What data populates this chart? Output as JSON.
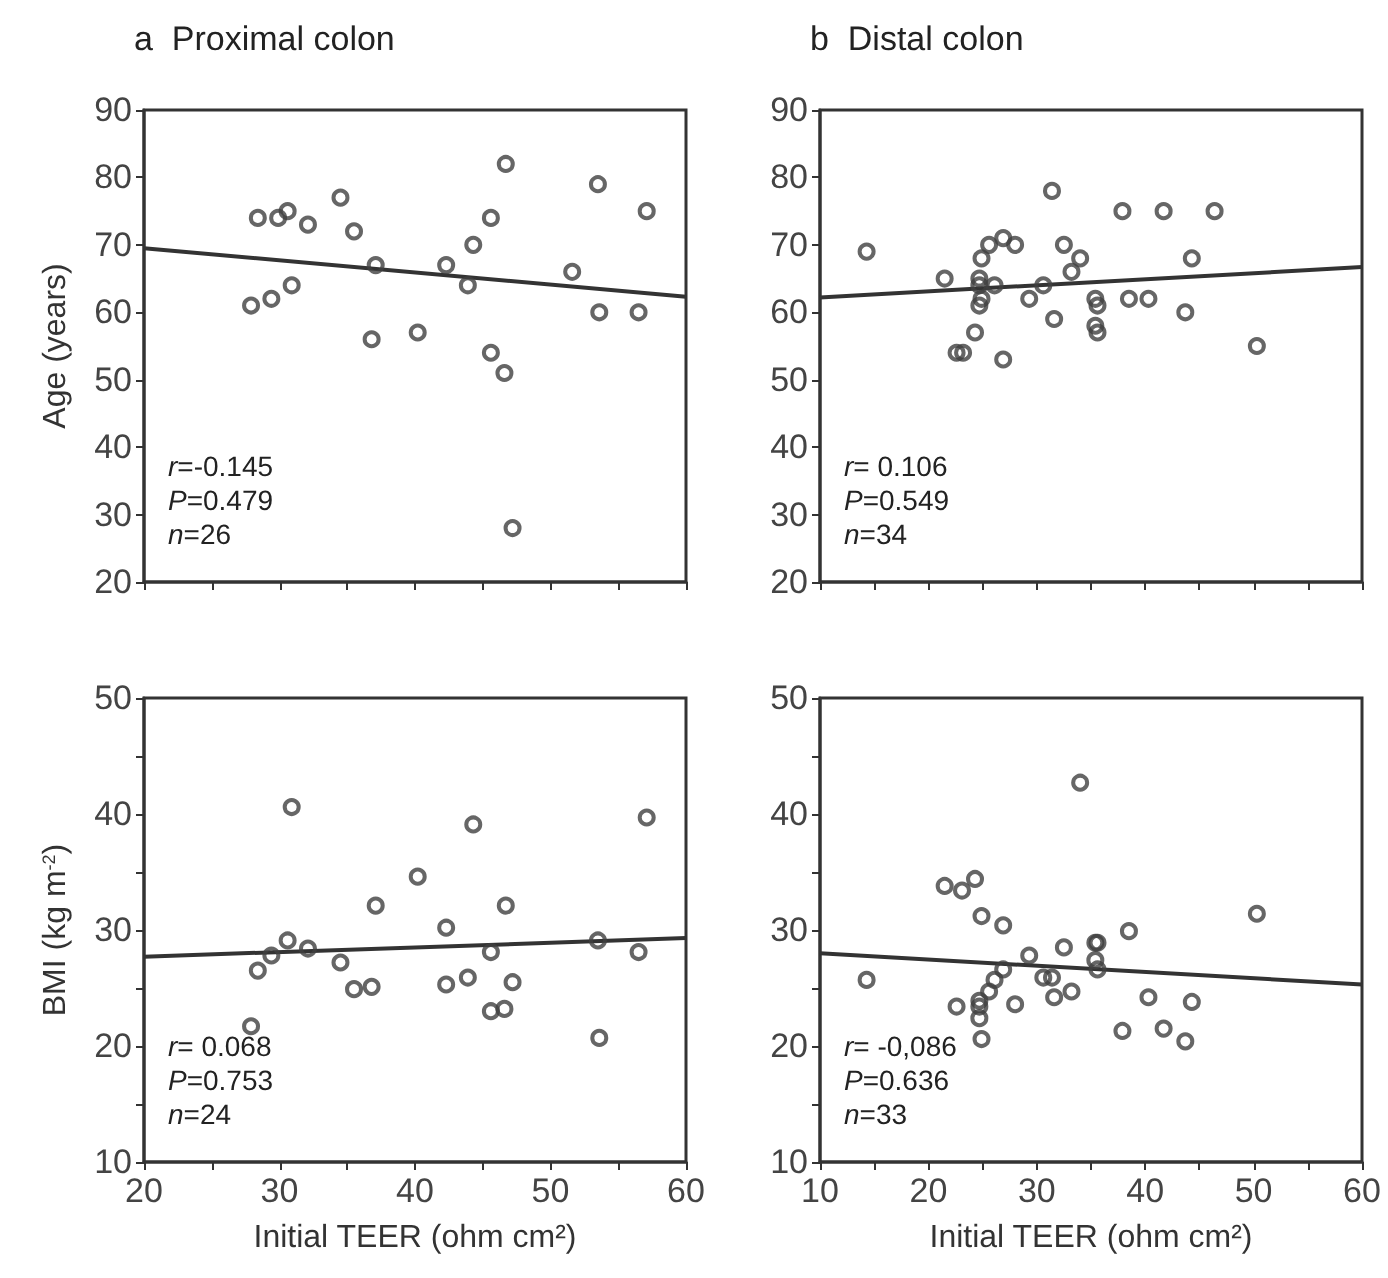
{
  "chart_data": [
    {
      "type": "scatter",
      "title": "a  Proximal colon",
      "ylabel": "Age (years)",
      "tick_labels": "y",
      "xlim": [
        20,
        60
      ],
      "xticks": [
        20,
        {
          "value": 25,
          "label": null
        },
        30,
        {
          "value": 35,
          "label": null
        },
        40,
        {
          "value": 45,
          "label": null
        },
        50,
        {
          "value": 55,
          "label": null
        },
        60
      ],
      "ylim": [
        20,
        90
      ],
      "yticks": [
        20,
        30,
        40,
        50,
        60,
        70,
        80,
        90
      ],
      "annotations": [
        "r=-0.145",
        "P=0.479",
        "n=26"
      ],
      "series": [
        {
          "marker": "circle",
          "color": "#404040",
          "x": [
            27.9,
            28.4,
            29.4,
            29.9,
            30.6,
            30.9,
            32.1,
            34.5,
            35.5,
            36.8,
            37.1,
            40.2,
            42.3,
            43.9,
            44.3,
            45.6,
            45.6,
            46.6,
            46.7,
            47.2,
            51.6,
            53.5,
            53.6,
            56.5,
            57.1
          ],
          "values": [
            61,
            74,
            62,
            74,
            75,
            64,
            73,
            77,
            72,
            56,
            67,
            57,
            67,
            64,
            70,
            54,
            74,
            51,
            82,
            28,
            66,
            79,
            60,
            60,
            75
          ]
        },
        {
          "type": "line",
          "marker": "none",
          "color": "#333333",
          "x": [
            20,
            60
          ],
          "values": [
            69.5,
            62.3
          ]
        }
      ]
    },
    {
      "type": "scatter",
      "title": "b  Distal colon",
      "tick_labels": "y",
      "xlim": [
        10,
        60
      ],
      "xticks": [
        10,
        {
          "value": 15,
          "label": null
        },
        20,
        {
          "value": 25,
          "label": null
        },
        30,
        {
          "value": 35,
          "label": null
        },
        40,
        {
          "value": 45,
          "label": null
        },
        50,
        {
          "value": 55,
          "label": null
        },
        60
      ],
      "ylim": [
        20,
        90
      ],
      "yticks": [
        20,
        30,
        40,
        50,
        60,
        70,
        80,
        90
      ],
      "annotations": [
        "r= 0.106",
        "P=0.549",
        "n=34"
      ],
      "series": [
        {
          "marker": "circle",
          "color": "#404040",
          "x": [
            14.3,
            21.5,
            22.6,
            23.2,
            24.3,
            24.7,
            24.7,
            24.7,
            24.9,
            24.9,
            25.6,
            26.1,
            26.9,
            26.9,
            28.0,
            29.3,
            30.6,
            31.4,
            31.6,
            32.5,
            33.2,
            34.0,
            35.4,
            35.6,
            35.4,
            35.6,
            37.9,
            38.5,
            40.3,
            41.7,
            43.7,
            44.3,
            46.4,
            50.3
          ],
          "values": [
            69,
            65,
            54,
            54,
            57,
            65,
            64,
            61,
            62,
            68,
            70,
            64,
            71,
            53,
            70,
            62,
            64,
            78,
            59,
            70,
            66,
            68,
            62,
            61,
            58,
            57,
            75,
            62,
            62,
            75,
            60,
            68,
            75,
            55
          ]
        },
        {
          "type": "line",
          "marker": "none",
          "color": "#333333",
          "x": [
            10,
            60
          ],
          "values": [
            62.2,
            66.7
          ]
        }
      ]
    },
    {
      "type": "scatter",
      "xlabel": "Initial TEER (ohm cm²)",
      "ylabel": "BMI (kg m$^{-2}$)",
      "xlim": [
        20,
        60
      ],
      "xticks": [
        20,
        {
          "value": 25,
          "label": null
        },
        30,
        {
          "value": 35,
          "label": null
        },
        40,
        {
          "value": 45,
          "label": null
        },
        50,
        {
          "value": 55,
          "label": null
        },
        60
      ],
      "ylim": [
        10,
        50
      ],
      "yticks": [
        10,
        {
          "value": 15,
          "label": null
        },
        20,
        {
          "value": 25,
          "label": null
        },
        30,
        {
          "value": 35,
          "label": null
        },
        40,
        {
          "value": 45,
          "label": null
        },
        50
      ],
      "annotations": [
        "r= 0.068",
        "P=0.753",
        "n=24"
      ],
      "series": [
        {
          "marker": "circle",
          "color": "#404040",
          "x": [
            27.9,
            28.4,
            29.4,
            30.6,
            30.9,
            32.1,
            34.5,
            35.5,
            36.8,
            37.1,
            40.2,
            42.3,
            42.3,
            43.9,
            44.3,
            45.6,
            45.6,
            46.6,
            46.7,
            47.2,
            53.5,
            53.6,
            56.5,
            57.1
          ],
          "values": [
            21.7,
            26.5,
            27.8,
            29.1,
            40.6,
            28.4,
            27.2,
            24.9,
            25.1,
            32.1,
            34.6,
            30.2,
            25.3,
            25.9,
            39.1,
            28.1,
            23.0,
            23.2,
            32.1,
            25.5,
            29.1,
            20.7,
            28.1,
            39.7
          ]
        },
        {
          "type": "line",
          "marker": "none",
          "color": "#333333",
          "x": [
            20,
            60
          ],
          "values": [
            27.7,
            29.3
          ]
        }
      ]
    },
    {
      "type": "scatter",
      "xlabel": "Initial TEER (ohm cm²)",
      "xlim": [
        10,
        60
      ],
      "xticks": [
        10,
        {
          "value": 15,
          "label": null
        },
        20,
        {
          "value": 25,
          "label": null
        },
        30,
        {
          "value": 35,
          "label": null
        },
        40,
        {
          "value": 45,
          "label": null
        },
        50,
        {
          "value": 55,
          "label": null
        },
        60
      ],
      "ylim": [
        10,
        50
      ],
      "yticks": [
        10,
        {
          "value": 15,
          "label": null
        },
        20,
        {
          "value": 25,
          "label": null
        },
        30,
        {
          "value": 35,
          "label": null
        },
        40,
        {
          "value": 45,
          "label": null
        },
        50
      ],
      "annotations": [
        "r= -0,086",
        "P=0.636",
        "n=33"
      ],
      "series": [
        {
          "marker": "circle",
          "color": "#404040",
          "x": [
            14.3,
            21.5,
            22.6,
            23.1,
            24.3,
            24.7,
            24.7,
            24.7,
            24.9,
            24.9,
            25.6,
            26.1,
            26.9,
            26.9,
            28.0,
            29.3,
            30.6,
            31.4,
            31.6,
            32.5,
            33.2,
            34.0,
            35.4,
            35.6,
            35.4,
            35.6,
            37.9,
            38.5,
            40.3,
            41.7,
            43.7,
            44.3,
            50.3
          ],
          "values": [
            25.7,
            33.8,
            23.4,
            33.4,
            34.4,
            23.9,
            23.4,
            22.4,
            31.2,
            20.6,
            24.7,
            25.7,
            30.4,
            26.6,
            23.6,
            27.8,
            25.9,
            25.9,
            24.2,
            28.5,
            24.7,
            42.7,
            28.9,
            28.9,
            27.4,
            26.6,
            21.3,
            29.9,
            24.2,
            21.5,
            20.4,
            23.8,
            31.4
          ]
        },
        {
          "type": "line",
          "marker": "none",
          "color": "#333333",
          "x": [
            10,
            60
          ],
          "values": [
            28.0,
            25.3
          ]
        }
      ]
    }
  ]
}
